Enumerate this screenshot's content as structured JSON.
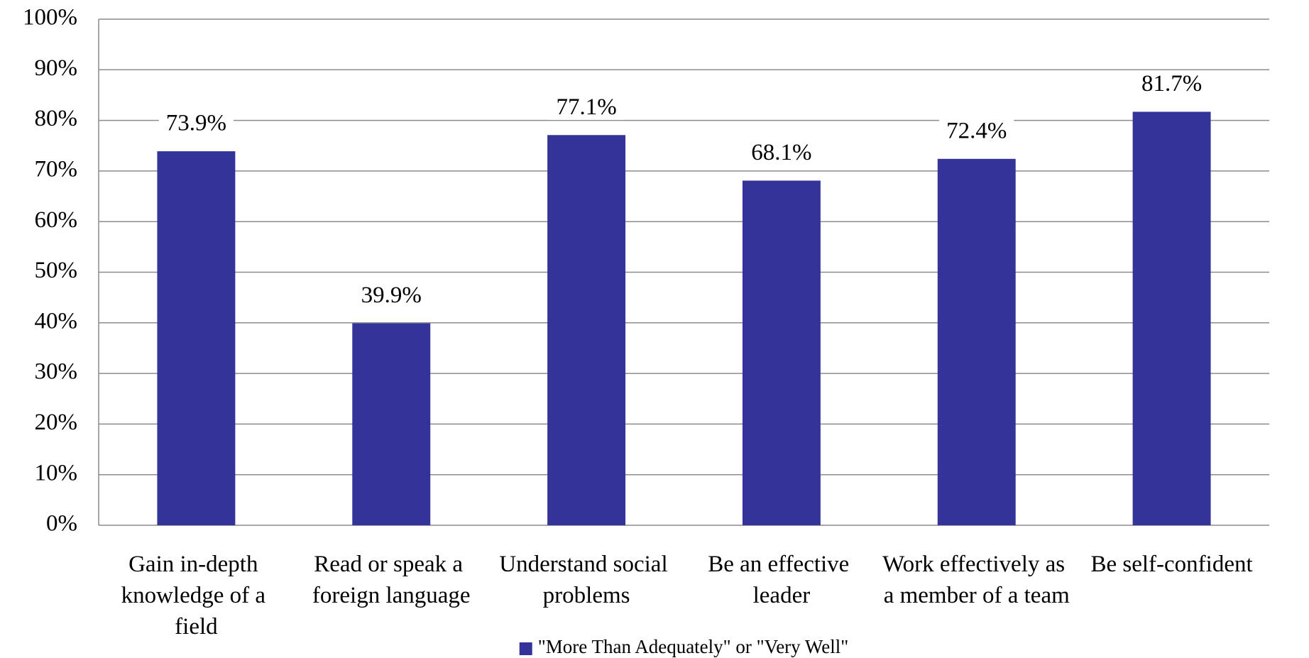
{
  "chart_data": {
    "type": "bar",
    "categories": [
      "Gain in-depth knowledge of a field",
      "Read or speak a foreign language",
      "Understand social problems",
      "Be an effective leader",
      "Work effectively as a member of a team",
      "Be self-confident"
    ],
    "series": [
      {
        "name": "\"More Than Adequately\" or \"Very Well\"",
        "color": "#333399",
        "values": [
          73.9,
          39.9,
          77.1,
          68.1,
          72.4,
          81.7
        ],
        "value_labels": [
          "73.9%",
          "39.9%",
          "77.1%",
          "68.1%",
          "72.4%",
          "81.7%"
        ]
      }
    ],
    "ylim": [
      0,
      100
    ],
    "yticks": [
      {
        "value": 0,
        "label": "0%"
      },
      {
        "value": 10,
        "label": "10%"
      },
      {
        "value": 20,
        "label": "20%"
      },
      {
        "value": 30,
        "label": "30%"
      },
      {
        "value": 40,
        "label": "40%"
      },
      {
        "value": 50,
        "label": "50%"
      },
      {
        "value": 60,
        "label": "60%"
      },
      {
        "value": 70,
        "label": "70%"
      },
      {
        "value": 80,
        "label": "80%"
      },
      {
        "value": 90,
        "label": "90%"
      },
      {
        "value": 100,
        "label": "100%"
      }
    ],
    "grid": true,
    "legend": "bottom"
  }
}
